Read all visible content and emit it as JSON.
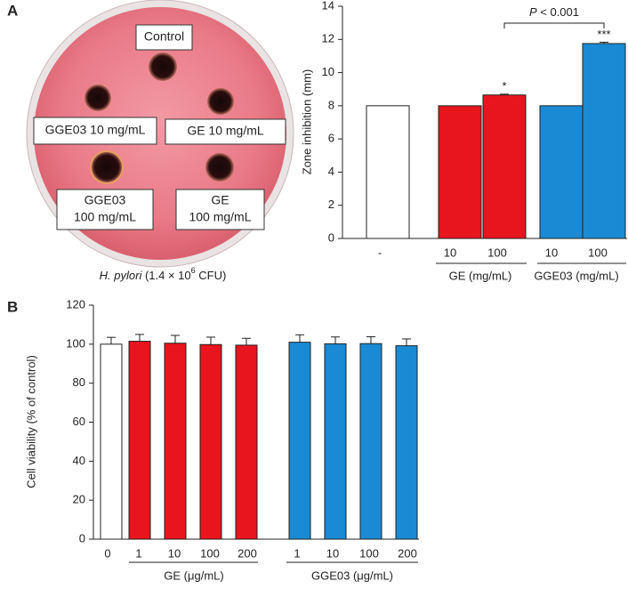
{
  "panel_labels": [
    "A",
    "B"
  ],
  "dish": {
    "labels": [
      "Control",
      "GGE03 10 mg/mL",
      "GE 10 mg/mL",
      "GGE03",
      "100 mg/mL",
      "GE",
      "100 mg/mL"
    ],
    "caption": {
      "organism": "H. pylori",
      "count": "(1.4 × 10",
      "exponent": "6",
      "unit": "CFU)"
    }
  },
  "chart_data": [
    {
      "type": "bar",
      "ylabel": "Zone inhibition (mm)",
      "categories": [
        "-",
        "10",
        "100",
        "10",
        "100"
      ],
      "values": [
        8,
        8,
        8.65,
        8,
        11.75
      ],
      "errors": [
        0,
        0,
        0.05,
        0,
        0.08
      ],
      "colors": [
        "#ffffff",
        "#e8141e",
        "#e8141e",
        "#1a8ad4",
        "#1a8ad4"
      ],
      "significance": [
        null,
        null,
        "*",
        null,
        "***"
      ],
      "groups": [
        "GE (mg/mL)",
        "GGE03 (mg/mL)"
      ],
      "comparison": {
        "p_symbol": "P",
        "p_text": "< 0.001"
      },
      "ylim": [
        0,
        14
      ],
      "yticks": [
        0,
        2,
        4,
        6,
        8,
        10,
        12,
        14
      ]
    },
    {
      "type": "bar",
      "ylabel": "Cell viability (% of control)",
      "categories": [
        "0",
        "1",
        "10",
        "100",
        "200",
        "1",
        "10",
        "100",
        "200"
      ],
      "values": [
        100,
        101.5,
        100.5,
        99.8,
        99.5,
        101,
        100.2,
        100.3,
        99.2
      ],
      "errors": [
        3.5,
        3.5,
        4,
        3.8,
        3.5,
        3.8,
        3.5,
        3.5,
        3.5
      ],
      "colors": [
        "#ffffff",
        "#e8141e",
        "#e8141e",
        "#e8141e",
        "#e8141e",
        "#1a8ad4",
        "#1a8ad4",
        "#1a8ad4",
        "#1a8ad4"
      ],
      "groups": [
        "GE (μg/mL)",
        "GGE03 (μg/mL)"
      ],
      "ylim": [
        0,
        120
      ],
      "yticks": [
        0,
        20,
        40,
        60,
        80,
        100,
        120
      ]
    }
  ]
}
